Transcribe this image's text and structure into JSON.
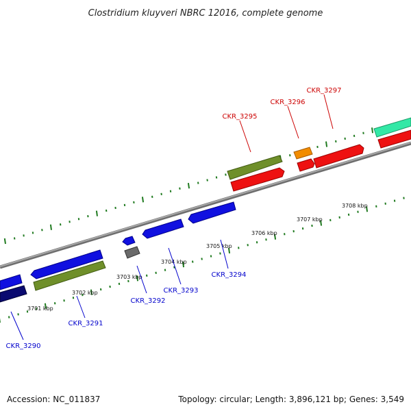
{
  "title": "Clostridium kluyveri NBRC 12016, complete genome",
  "accession": "Accession: NC_011837",
  "summary": "Topology: circular; Length: 3,896,121 bp; Genes: 3,549",
  "colors": {
    "backbone": "#8c8c8c",
    "tick": "#1f7a1f",
    "label_top": "#cc0000",
    "label_bottom": "#0000cc",
    "blue": "#1010e0",
    "navy": "#0a0a70",
    "olive": "#6f8f2a",
    "red": "#ee1111",
    "orange": "#f28c00",
    "teal": "#33e8a6",
    "gray": "#6a6a6a"
  },
  "scale_labels": [
    "3701 kbp",
    "3702 kbp",
    "3703 kbp",
    "3704 kbp",
    "3705 kbp",
    "3706 kbp",
    "3707 kbp",
    "3708 kbp"
  ],
  "gene_labels_top": [
    "CKR_3295",
    "CKR_3296",
    "CKR_3297"
  ],
  "gene_labels_bottom": [
    "CKR_3290",
    "CKR_3291",
    "CKR_3292",
    "CKR_3293",
    "CKR_3294"
  ]
}
